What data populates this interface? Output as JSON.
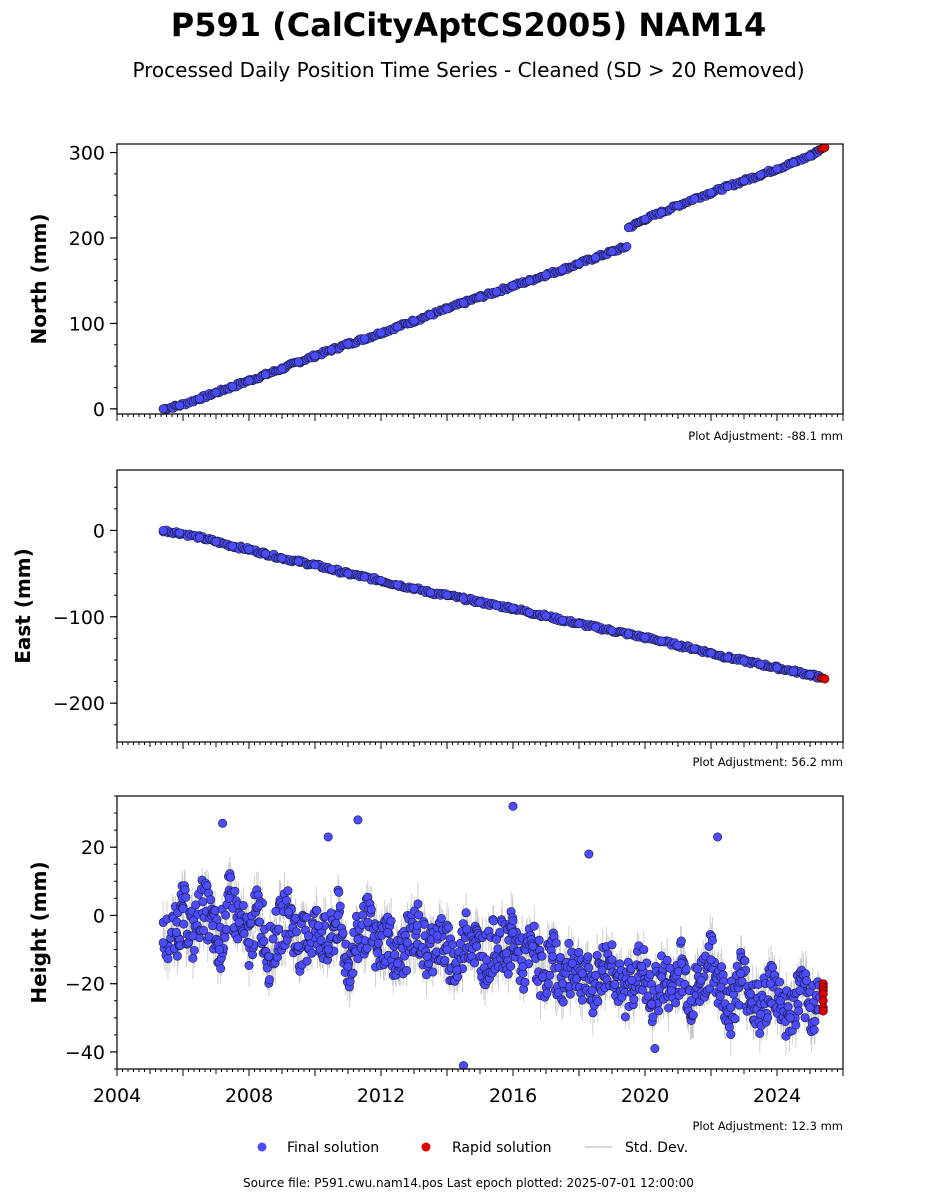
{
  "title": "P591 (CalCityAptCS2005) NAM14",
  "subtitle": "Processed Daily Position Time Series - Cleaned (SD > 20 Removed)",
  "footer": "Source file: P591.cwu.nam14.pos  Last epoch plotted: 2025-07-01 12:00:00",
  "legend": {
    "final": "Final solution",
    "rapid": "Rapid solution",
    "std": "Std. Dev."
  },
  "colors": {
    "final": "#4b4bff",
    "rapid": "#e00000",
    "std": "#b0b0b0",
    "marker_edge": "#1a1a33"
  },
  "chart_data": [
    {
      "type": "scatter",
      "ylabel": "North (mm)",
      "adjustment": "Plot Adjustment: -88.1 mm",
      "xlim": [
        2004,
        2026
      ],
      "ylim": [
        -6,
        310
      ],
      "yticks": [
        0,
        100,
        200,
        300
      ],
      "yticklabels": [
        "0",
        "100",
        "200",
        "300"
      ],
      "xticks": [
        2004,
        2008,
        2012,
        2016,
        2020,
        2024
      ],
      "show_xticklabels": false,
      "grid": false,
      "series_final": {
        "x": [
          2005.4,
          2005.9,
          2006.5,
          2007.0,
          2007.5,
          2008.0,
          2008.5,
          2009.0,
          2009.5,
          2010.0,
          2010.5,
          2011.0,
          2011.5,
          2012.0,
          2012.5,
          2013.0,
          2013.5,
          2014.0,
          2014.5,
          2015.0,
          2015.5,
          2016.0,
          2016.5,
          2017.0,
          2017.5,
          2018.0,
          2018.5,
          2019.0,
          2019.45,
          2019.5,
          2020.0,
          2020.5,
          2021.0,
          2021.5,
          2022.0,
          2022.5,
          2023.0,
          2023.5,
          2024.0,
          2024.5,
          2025.0,
          2025.3
        ],
        "y": [
          0,
          4,
          12,
          19,
          26,
          33,
          40,
          47,
          55,
          62,
          69,
          76,
          82,
          89,
          96,
          103,
          110,
          117,
          124,
          131,
          137,
          144,
          150,
          157,
          163,
          170,
          177,
          184,
          190,
          212,
          222,
          230,
          238,
          246,
          253,
          260,
          267,
          274,
          281,
          288,
          296,
          303
        ],
        "std": [
          1.5,
          1.5,
          1.5,
          1.5,
          1.5,
          1.5,
          1.5,
          1.5,
          1.5,
          1.5,
          1.5,
          1.5,
          1.5,
          1.5,
          1.5,
          1.5,
          1.5,
          1.5,
          1.5,
          1.5,
          1.5,
          1.5,
          1.5,
          1.5,
          1.5,
          1.5,
          1.5,
          1.5,
          1.5,
          1.5,
          1.5,
          1.5,
          1.5,
          1.5,
          1.5,
          1.5,
          1.5,
          1.5,
          1.5,
          1.5,
          1.5,
          1.5
        ]
      },
      "series_rapid": {
        "x": [
          2025.35,
          2025.4,
          2025.45
        ],
        "y": [
          304,
          305,
          306
        ]
      }
    },
    {
      "type": "scatter",
      "ylabel": "East (mm)",
      "adjustment": "Plot Adjustment: 56.2 mm",
      "xlim": [
        2004,
        2026
      ],
      "ylim": [
        -245,
        70
      ],
      "yticks": [
        0,
        -100,
        -200
      ],
      "yticklabels": [
        "0",
        "−100",
        "−200"
      ],
      "xticks": [
        2004,
        2008,
        2012,
        2016,
        2020,
        2024
      ],
      "show_xticklabels": false,
      "grid": false,
      "series_final": {
        "x": [
          2005.4,
          2005.9,
          2006.5,
          2007.0,
          2007.5,
          2008.0,
          2008.5,
          2009.0,
          2009.5,
          2010.0,
          2010.5,
          2011.0,
          2011.5,
          2012.0,
          2012.5,
          2013.0,
          2013.5,
          2014.0,
          2014.5,
          2015.0,
          2015.5,
          2016.0,
          2016.5,
          2017.0,
          2017.5,
          2018.0,
          2018.5,
          2019.0,
          2019.5,
          2020.0,
          2020.5,
          2021.0,
          2021.5,
          2022.0,
          2022.5,
          2023.0,
          2023.5,
          2024.0,
          2024.5,
          2025.0,
          2025.3
        ],
        "y": [
          0,
          -3,
          -8,
          -13,
          -18,
          -22,
          -27,
          -32,
          -36,
          -40,
          -45,
          -50,
          -54,
          -58,
          -63,
          -67,
          -72,
          -75,
          -79,
          -83,
          -87,
          -90,
          -95,
          -99,
          -104,
          -108,
          -112,
          -116,
          -120,
          -124,
          -128,
          -133,
          -137,
          -142,
          -147,
          -151,
          -155,
          -159,
          -163,
          -167,
          -170
        ],
        "std": [
          1.5,
          1.5,
          1.5,
          1.5,
          1.5,
          1.5,
          1.5,
          1.5,
          1.5,
          1.5,
          1.5,
          1.5,
          1.5,
          1.5,
          1.5,
          1.5,
          1.5,
          1.5,
          1.5,
          1.5,
          1.5,
          1.5,
          1.5,
          1.5,
          1.5,
          1.5,
          1.5,
          1.5,
          1.5,
          1.5,
          1.5,
          1.5,
          1.5,
          1.5,
          1.5,
          1.5,
          1.5,
          1.5,
          1.5,
          1.5,
          1.5
        ]
      },
      "series_rapid": {
        "x": [
          2025.35,
          2025.4,
          2025.45
        ],
        "y": [
          -171,
          -171,
          -172
        ]
      }
    },
    {
      "type": "scatter",
      "ylabel": "Height (mm)",
      "adjustment": "Plot Adjustment: 12.3 mm",
      "xlim": [
        2004,
        2026
      ],
      "ylim": [
        -45,
        35
      ],
      "yticks": [
        20,
        0,
        -20,
        -40
      ],
      "yticklabels": [
        "20",
        "0",
        "−20",
        "−40"
      ],
      "xticks": [
        2004,
        2008,
        2012,
        2016,
        2020,
        2024
      ],
      "xticklabels": [
        "2004",
        "2008",
        "2012",
        "2016",
        "2020",
        "2024"
      ],
      "show_xticklabels": true,
      "grid": false,
      "series_final": {
        "x": [
          2005.4,
          2005.8,
          2006.0,
          2006.3,
          2006.6,
          2006.9,
          2007.1,
          2007.4,
          2007.7,
          2008.0,
          2008.3,
          2008.6,
          2008.9,
          2009.2,
          2009.5,
          2009.8,
          2010.1,
          2010.4,
          2010.7,
          2011.0,
          2011.3,
          2011.6,
          2011.9,
          2012.2,
          2012.5,
          2012.8,
          2013.1,
          2013.4,
          2013.7,
          2014.0,
          2014.3,
          2014.6,
          2014.9,
          2015.2,
          2015.5,
          2015.8,
          2016.0,
          2016.3,
          2016.6,
          2016.9,
          2017.2,
          2017.5,
          2017.8,
          2018.1,
          2018.4,
          2018.7,
          2019.0,
          2019.3,
          2019.6,
          2019.9,
          2020.2,
          2020.5,
          2020.8,
          2021.1,
          2021.4,
          2021.7,
          2022.0,
          2022.3,
          2022.6,
          2022.9,
          2023.2,
          2023.5,
          2023.8,
          2024.1,
          2024.4,
          2024.7,
          2025.0,
          2025.3,
          2007.2,
          2010.4,
          2011.3,
          2016.0,
          2018.3,
          2022.2,
          2014.5,
          2020.3
        ],
        "y": [
          -8,
          -5,
          2,
          -6,
          4,
          -3,
          -10,
          5,
          -2,
          -8,
          3,
          -12,
          -4,
          1,
          -9,
          -6,
          -3,
          -10,
          0,
          -15,
          -7,
          -2,
          -11,
          -5,
          -14,
          -8,
          -3,
          -12,
          -6,
          -10,
          -16,
          -4,
          -9,
          -13,
          -7,
          -11,
          -5,
          -15,
          -9,
          -18,
          -12,
          -20,
          -14,
          -17,
          -22,
          -16,
          -13,
          -24,
          -19,
          -15,
          -26,
          -18,
          -22,
          -14,
          -25,
          -19,
          -13,
          -21,
          -27,
          -17,
          -23,
          -29,
          -20,
          -25,
          -30,
          -22,
          -27,
          -24,
          27,
          23,
          28,
          32,
          18,
          23,
          -44,
          -39
        ],
        "std": [
          4,
          4,
          4,
          4,
          4,
          4,
          4,
          4,
          4,
          4,
          4,
          4,
          4,
          4,
          4,
          4,
          4,
          4,
          4,
          4,
          4,
          4,
          4,
          4,
          4,
          4,
          4,
          4,
          4,
          4,
          4,
          4,
          4,
          4,
          4,
          4,
          4,
          4,
          4,
          4,
          4,
          4,
          4,
          4,
          4,
          4,
          4,
          4,
          4,
          4,
          4,
          4,
          4,
          4,
          4,
          4,
          4,
          4,
          4,
          4,
          4,
          4,
          4,
          4,
          4,
          4,
          4,
          4,
          4,
          4,
          4,
          4,
          4,
          4,
          4,
          4
        ]
      },
      "series_rapid": {
        "x": [
          2025.4,
          2025.4,
          2025.4,
          2025.4,
          2025.4,
          2025.4,
          2025.4
        ],
        "y": [
          -20,
          -21,
          -22,
          -23,
          -25,
          -27,
          -28
        ]
      }
    }
  ]
}
